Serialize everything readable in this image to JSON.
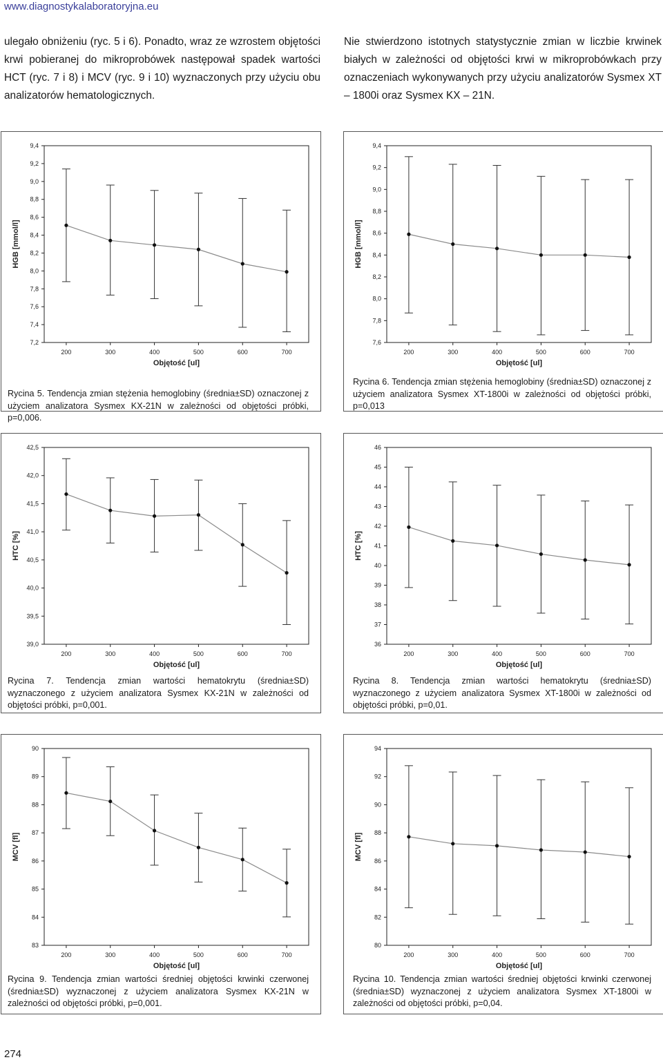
{
  "header": {
    "site_url": "www.diagnostykalaboratoryjna.eu"
  },
  "body_text": {
    "left": "ulegało obniżeniu (ryc. 5 i 6). Ponadto, wraz ze wzrostem objętości krwi pobieranej do mikroprobówek następował spadek wartości HCT (ryc. 7 i 8) i MCV (ryc. 9 i 10) wyznaczonych przy użyciu obu analizatorów hematologicznych.",
    "right": "Nie stwierdzono istotnych statystycznie zmian w liczbie krwinek białych w zależności od objętości krwi w mikroprobówkach przy oznaczeniach wykonywanych przy użyciu analizatorów Sysmex XT – 1800i oraz Sysmex KX – 21N."
  },
  "captions": [
    {
      "lead": "Rycina 5.",
      "text": " Tendencja zmian stężenia hemoglobiny (średnia±SD) oznaczonej z użyciem analizatora Sysmex KX-21N w zależności od objętości próbki, p=0,006."
    },
    {
      "lead": "Rycina 6.",
      "text": " Tendencja zmian stężenia hemoglobiny (średnia±SD) oznaczonej z użyciem analizatora Sysmex XT-1800i w zależności od objętości próbki, p=0,013"
    },
    {
      "lead": "Rycina 7.",
      "text": " Tendencja zmian wartości hematokrytu (średnia±SD) wyznaczonego z użyciem analizatora Sysmex KX-21N w zależności od objętości próbki, p=0,001."
    },
    {
      "lead": "Rycina 8.",
      "text": " Tendencja zmian wartości hematokrytu (średnia±SD) wyznaczonego z użyciem analizatora Sysmex XT-1800i w zależności od objętości próbki, p=0,01."
    },
    {
      "lead": "Rycina 9.",
      "text": " Tendencja zmian wartości średniej objętości krwinki czerwonej (średnia±SD) wyznaczonej z użyciem analizatora Sysmex KX-21N w zależności od objętości próbki, p=0,001."
    },
    {
      "lead": "Rycina 10.",
      "text": " Tendencja zmian wartości średniej objętości krwinki czerwonej (średnia±SD) wyznaczonej z użyciem analizatora Sysmex XT-1800i w zależności od objętości próbki, p=0,04."
    }
  ],
  "footer": {
    "page_number": "274"
  },
  "colors": {
    "line": "#8a8a8a",
    "errorbar": "#333333",
    "point": "#111111",
    "url": "#3a3f9a"
  },
  "chart_data": [
    {
      "type": "line",
      "title": "Rycina 5",
      "xlabel": "Objętość [ul]",
      "ylabel": "HGB [mmol/l]",
      "x": [
        200,
        300,
        400,
        500,
        600,
        700
      ],
      "xlim": [
        150,
        750
      ],
      "ylim": [
        7.2,
        9.4
      ],
      "yticks": [
        "7,2",
        "7,4",
        "7,6",
        "7,8",
        "8,0",
        "8,2",
        "8,4",
        "8,6",
        "8,8",
        "9,0",
        "9,2",
        "9,4"
      ],
      "values": [
        8.51,
        8.34,
        8.29,
        8.24,
        8.08,
        7.99
      ],
      "upper": [
        9.14,
        8.96,
        8.9,
        8.87,
        8.81,
        8.68
      ],
      "lower": [
        7.88,
        7.73,
        7.69,
        7.61,
        7.37,
        7.32
      ]
    },
    {
      "type": "line",
      "title": "Rycina 6",
      "xlabel": "Objętość [ul]",
      "ylabel": "HGB [mmol/l]",
      "x": [
        200,
        300,
        400,
        500,
        600,
        700
      ],
      "xlim": [
        150,
        750
      ],
      "ylim": [
        7.6,
        9.4
      ],
      "yticks": [
        "7,6",
        "7,8",
        "8,0",
        "8,2",
        "8,4",
        "8,6",
        "8,8",
        "9,0",
        "9,2",
        "9,4"
      ],
      "values": [
        8.59,
        8.5,
        8.46,
        8.4,
        8.4,
        8.38
      ],
      "upper": [
        9.3,
        9.23,
        9.22,
        9.12,
        9.09,
        9.09
      ],
      "lower": [
        7.87,
        7.76,
        7.7,
        7.67,
        7.71,
        7.67
      ]
    },
    {
      "type": "line",
      "title": "Rycina 7",
      "xlabel": "Objętość [ul]",
      "ylabel": "HTC [%]",
      "x": [
        200,
        300,
        400,
        500,
        600,
        700
      ],
      "xlim": [
        150,
        750
      ],
      "ylim": [
        39.0,
        42.5
      ],
      "yticks": [
        "39,0",
        "39,5",
        "40,0",
        "40,5",
        "41,0",
        "41,5",
        "42,0",
        "42,5"
      ],
      "values": [
        41.67,
        41.38,
        41.28,
        41.3,
        40.77,
        40.27
      ],
      "upper": [
        42.3,
        41.96,
        41.93,
        41.92,
        41.5,
        41.2
      ],
      "lower": [
        41.03,
        40.8,
        40.64,
        40.67,
        40.03,
        39.35
      ]
    },
    {
      "type": "line",
      "title": "Rycina 8",
      "xlabel": "Objętość [ul]",
      "ylabel": "HTC [%]",
      "x": [
        200,
        300,
        400,
        500,
        600,
        700
      ],
      "xlim": [
        150,
        750
      ],
      "ylim": [
        36,
        46
      ],
      "yticks": [
        "36",
        "37",
        "38",
        "39",
        "40",
        "41",
        "42",
        "43",
        "44",
        "45",
        "46"
      ],
      "values": [
        41.95,
        41.25,
        41.02,
        40.58,
        40.28,
        40.04
      ],
      "upper": [
        45.0,
        44.25,
        44.08,
        43.58,
        43.28,
        43.08
      ],
      "lower": [
        38.88,
        38.22,
        37.93,
        37.58,
        37.28,
        37.03
      ]
    },
    {
      "type": "line",
      "title": "Rycina 9",
      "xlabel": "Objętość [ul]",
      "ylabel": "MCV [fl]",
      "x": [
        200,
        300,
        400,
        500,
        600,
        700
      ],
      "xlim": [
        150,
        750
      ],
      "ylim": [
        83,
        90
      ],
      "yticks": [
        "83",
        "84",
        "85",
        "86",
        "87",
        "88",
        "89",
        "90"
      ],
      "values": [
        88.42,
        88.12,
        87.08,
        86.48,
        86.05,
        85.22
      ],
      "upper": [
        89.68,
        89.35,
        88.35,
        87.7,
        87.17,
        86.42
      ],
      "lower": [
        87.15,
        86.9,
        85.85,
        85.25,
        84.93,
        84.01
      ]
    },
    {
      "type": "line",
      "title": "Rycina 10",
      "xlabel": "Objętość [ul]",
      "ylabel": "MCV [fl]",
      "x": [
        200,
        300,
        400,
        500,
        600,
        700
      ],
      "xlim": [
        150,
        750
      ],
      "ylim": [
        80,
        94
      ],
      "yticks": [
        "80",
        "82",
        "84",
        "86",
        "88",
        "90",
        "92",
        "94"
      ],
      "values": [
        87.72,
        87.23,
        87.08,
        86.78,
        86.63,
        86.31
      ],
      "upper": [
        92.78,
        92.33,
        92.08,
        91.78,
        91.63,
        91.21
      ],
      "lower": [
        82.67,
        82.2,
        82.1,
        81.89,
        81.65,
        81.51
      ]
    }
  ]
}
